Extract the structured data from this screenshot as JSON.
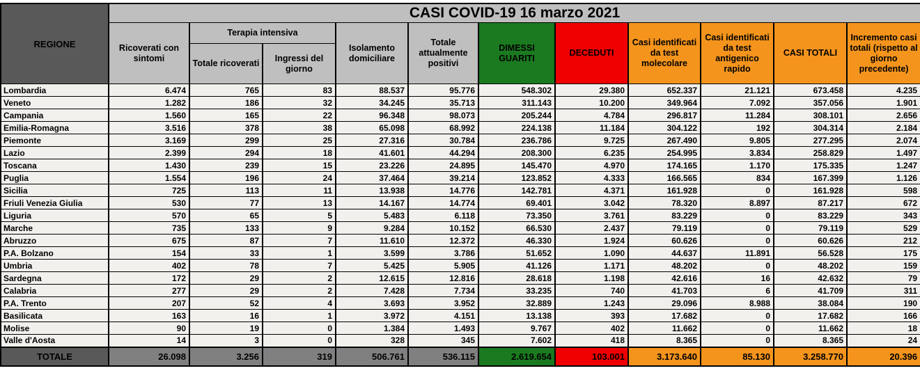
{
  "colors": {
    "header_gray": "#BFBFBF",
    "dark_gray": "#595959",
    "total_gray": "#808080",
    "green": "#1B7A1F",
    "red": "#F00000",
    "orange": "#F4941C",
    "row_background": "#F2F0ED",
    "border": "#000000"
  },
  "chart_data": {
    "type": "table",
    "title": "CASI COVID-19 16 marzo 2021",
    "region_column_header": "REGIONE",
    "group_header": "Terapia intensiva",
    "column_headers": [
      "Ricoverati con sintomi",
      "Totale ricoverati",
      "Ingressi del giorno",
      "Isolamento domiciliare",
      "Totale attualmente positivi",
      "DIMESSI GUARITI",
      "DECEDUTI",
      "Casi identificati da test molecolare",
      "Casi identificati da test antigenico rapido",
      "CASI TOTALI",
      "Incremento casi totali (rispetto al giorno precedente)"
    ],
    "rows": [
      [
        "Lombardia",
        "6.474",
        "765",
        "83",
        "88.537",
        "95.776",
        "548.302",
        "29.380",
        "652.337",
        "21.121",
        "673.458",
        "4.235"
      ],
      [
        "Veneto",
        "1.282",
        "186",
        "32",
        "34.245",
        "35.713",
        "311.143",
        "10.200",
        "349.964",
        "7.092",
        "357.056",
        "1.901"
      ],
      [
        "Campania",
        "1.560",
        "165",
        "22",
        "96.348",
        "98.073",
        "205.244",
        "4.784",
        "296.817",
        "11.284",
        "308.101",
        "2.656"
      ],
      [
        "Emilia-Romagna",
        "3.516",
        "378",
        "38",
        "65.098",
        "68.992",
        "224.138",
        "11.184",
        "304.122",
        "192",
        "304.314",
        "2.184"
      ],
      [
        "Piemonte",
        "3.169",
        "299",
        "25",
        "27.316",
        "30.784",
        "236.786",
        "9.725",
        "267.490",
        "9.805",
        "277.295",
        "2.074"
      ],
      [
        "Lazio",
        "2.399",
        "294",
        "18",
        "41.601",
        "44.294",
        "208.300",
        "6.235",
        "254.995",
        "3.834",
        "258.829",
        "1.497"
      ],
      [
        "Toscana",
        "1.430",
        "239",
        "15",
        "23.226",
        "24.895",
        "145.470",
        "4.970",
        "174.165",
        "1.170",
        "175.335",
        "1.247"
      ],
      [
        "Puglia",
        "1.554",
        "196",
        "24",
        "37.464",
        "39.214",
        "123.852",
        "4.333",
        "166.565",
        "834",
        "167.399",
        "1.126"
      ],
      [
        "Sicilia",
        "725",
        "113",
        "11",
        "13.938",
        "14.776",
        "142.781",
        "4.371",
        "161.928",
        "0",
        "161.928",
        "598"
      ],
      [
        "Friuli Venezia Giulia",
        "530",
        "77",
        "13",
        "14.167",
        "14.774",
        "69.401",
        "3.042",
        "78.320",
        "8.897",
        "87.217",
        "672"
      ],
      [
        "Liguria",
        "570",
        "65",
        "5",
        "5.483",
        "6.118",
        "73.350",
        "3.761",
        "83.229",
        "0",
        "83.229",
        "343"
      ],
      [
        "Marche",
        "735",
        "133",
        "9",
        "9.284",
        "10.152",
        "66.530",
        "2.437",
        "79.119",
        "0",
        "79.119",
        "529"
      ],
      [
        "Abruzzo",
        "675",
        "87",
        "7",
        "11.610",
        "12.372",
        "46.330",
        "1.924",
        "60.626",
        "0",
        "60.626",
        "212"
      ],
      [
        "P.A. Bolzano",
        "154",
        "33",
        "1",
        "3.599",
        "3.786",
        "51.652",
        "1.090",
        "44.637",
        "11.891",
        "56.528",
        "175"
      ],
      [
        "Umbria",
        "402",
        "78",
        "7",
        "5.425",
        "5.905",
        "41.126",
        "1.171",
        "48.202",
        "0",
        "48.202",
        "159"
      ],
      [
        "Sardegna",
        "172",
        "29",
        "2",
        "12.615",
        "12.816",
        "28.618",
        "1.198",
        "42.616",
        "16",
        "42.632",
        "79"
      ],
      [
        "Calabria",
        "277",
        "29",
        "2",
        "7.428",
        "7.734",
        "33.235",
        "740",
        "41.703",
        "6",
        "41.709",
        "311"
      ],
      [
        "P.A. Trento",
        "207",
        "52",
        "4",
        "3.693",
        "3.952",
        "32.889",
        "1.243",
        "29.096",
        "8.988",
        "38.084",
        "190"
      ],
      [
        "Basilicata",
        "163",
        "16",
        "1",
        "3.972",
        "4.151",
        "13.138",
        "393",
        "17.682",
        "0",
        "17.682",
        "166"
      ],
      [
        "Molise",
        "90",
        "19",
        "0",
        "1.384",
        "1.493",
        "9.767",
        "402",
        "11.662",
        "0",
        "11.662",
        "18"
      ],
      [
        "Valle d'Aosta",
        "14",
        "3",
        "0",
        "328",
        "345",
        "7.602",
        "418",
        "8.365",
        "0",
        "8.365",
        "24"
      ]
    ],
    "total_row": [
      "TOTALE",
      "26.098",
      "3.256",
      "319",
      "506.761",
      "536.115",
      "2.619.654",
      "103.001",
      "3.173.640",
      "85.130",
      "3.258.770",
      "20.396"
    ]
  }
}
